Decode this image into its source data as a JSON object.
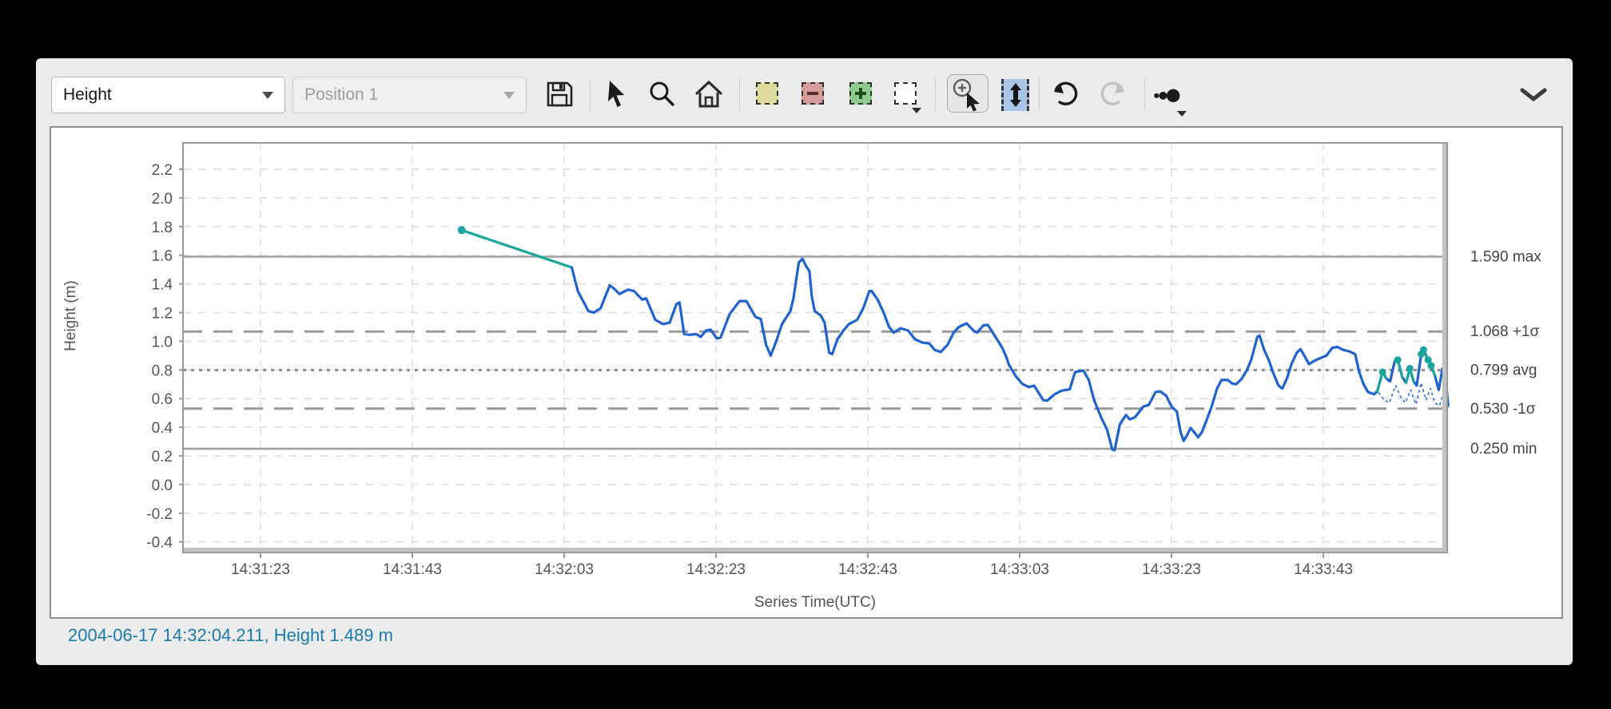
{
  "toolbar": {
    "series_select": {
      "value": "Height"
    },
    "position_select": {
      "value": "Position 1",
      "disabled": true
    },
    "icons": [
      "save-icon",
      "cursor-arrow-icon",
      "search-icon",
      "home-icon",
      "region-create-icon",
      "region-subtract-icon",
      "region-add-icon",
      "region-empty-icon",
      "zoom-select-icon",
      "fit-vertical-icon",
      "undo-icon",
      "redo-icon",
      "marker-size-icon",
      "chevron-down-icon"
    ]
  },
  "status_bar": {
    "text": "2004-06-17 14:32:04.211, Height 1.489 m"
  },
  "chart_data": {
    "type": "line",
    "title": "",
    "xlabel": "Series Time(UTC)",
    "ylabel": "Height (m)",
    "x_axis": {
      "unit": "seconds after 14:31:23 UTC",
      "range": [
        -10.2,
        156.5
      ],
      "ticks": [
        [
          0,
          "14:31:23"
        ],
        [
          20,
          "14:31:43"
        ],
        [
          40,
          "14:32:03"
        ],
        [
          60,
          "14:32:23"
        ],
        [
          80,
          "14:32:43"
        ],
        [
          100,
          "14:33:03"
        ],
        [
          120,
          "14:33:23"
        ],
        [
          140,
          "14:33:43"
        ]
      ],
      "grid": true
    },
    "y_axis": {
      "range": [
        -0.46,
        2.39
      ],
      "ticks": [
        -0.4,
        -0.2,
        0.0,
        0.2,
        0.4,
        0.6,
        0.8,
        1.0,
        1.2,
        1.4,
        1.6,
        1.8,
        2.0,
        2.2
      ],
      "grid": true
    },
    "reference_lines": [
      {
        "value": 1.59,
        "label": "1.590 max",
        "style": "solid"
      },
      {
        "value": 1.068,
        "label": "1.068 +1σ",
        "style": "dash"
      },
      {
        "value": 0.799,
        "label": "0.799 avg",
        "style": "dot"
      },
      {
        "value": 0.53,
        "label": "0.530 -1σ",
        "style": "dash"
      },
      {
        "value": 0.25,
        "label": "0.250 min",
        "style": "solid"
      }
    ],
    "series": [
      {
        "name": "gap-segment",
        "color": "#1aa69d",
        "style": "solid",
        "width": 3.2,
        "points": [
          [
            26.5,
            1.775
          ],
          [
            41.0,
            1.515
          ]
        ],
        "markers": [
          [
            26.5,
            1.775
          ]
        ],
        "marker_r": 5
      },
      {
        "name": "height",
        "color": "#1f63cf",
        "style": "solid",
        "width": 3.2,
        "points": [
          [
            41.0,
            1.515
          ],
          [
            41.8,
            1.35
          ],
          [
            43.2,
            1.21
          ],
          [
            43.9,
            1.2
          ],
          [
            44.8,
            1.23
          ],
          [
            46.0,
            1.39
          ],
          [
            46.5,
            1.37
          ],
          [
            47.3,
            1.33
          ],
          [
            48.4,
            1.36
          ],
          [
            49.2,
            1.35
          ],
          [
            50.3,
            1.29
          ],
          [
            50.8,
            1.3
          ],
          [
            52.0,
            1.15
          ],
          [
            53.0,
            1.12
          ],
          [
            53.9,
            1.13
          ],
          [
            54.8,
            1.26
          ],
          [
            55.2,
            1.27
          ],
          [
            55.8,
            1.05
          ],
          [
            56.5,
            1.045
          ],
          [
            57.4,
            1.05
          ],
          [
            58.0,
            1.03
          ],
          [
            58.7,
            1.075
          ],
          [
            59.3,
            1.08
          ],
          [
            60.1,
            1.02
          ],
          [
            60.6,
            1.025
          ],
          [
            61.8,
            1.19
          ],
          [
            63.1,
            1.28
          ],
          [
            64.0,
            1.28
          ],
          [
            65.2,
            1.17
          ],
          [
            65.9,
            1.155
          ],
          [
            66.6,
            0.975
          ],
          [
            67.2,
            0.9
          ],
          [
            68.0,
            1.01
          ],
          [
            68.7,
            1.12
          ],
          [
            69.3,
            1.17
          ],
          [
            69.8,
            1.21
          ],
          [
            70.2,
            1.3
          ],
          [
            70.9,
            1.55
          ],
          [
            71.4,
            1.575
          ],
          [
            71.9,
            1.52
          ],
          [
            72.3,
            1.49
          ],
          [
            72.6,
            1.32
          ],
          [
            73.0,
            1.21
          ],
          [
            73.8,
            1.18
          ],
          [
            74.3,
            1.13
          ],
          [
            74.9,
            0.92
          ],
          [
            75.3,
            0.91
          ],
          [
            76.0,
            1.015
          ],
          [
            76.8,
            1.075
          ],
          [
            77.5,
            1.12
          ],
          [
            78.6,
            1.15
          ],
          [
            79.4,
            1.23
          ],
          [
            80.2,
            1.35
          ],
          [
            80.5,
            1.35
          ],
          [
            81.3,
            1.29
          ],
          [
            82.0,
            1.21
          ],
          [
            82.8,
            1.1
          ],
          [
            83.4,
            1.06
          ],
          [
            84.3,
            1.09
          ],
          [
            85.3,
            1.075
          ],
          [
            86.2,
            1.015
          ],
          [
            87.2,
            0.99
          ],
          [
            88.1,
            0.985
          ],
          [
            88.8,
            0.94
          ],
          [
            89.6,
            0.925
          ],
          [
            90.5,
            0.975
          ],
          [
            91.3,
            1.06
          ],
          [
            92.0,
            1.1
          ],
          [
            93.0,
            1.125
          ],
          [
            93.9,
            1.075
          ],
          [
            94.4,
            1.06
          ],
          [
            95.2,
            1.11
          ],
          [
            95.8,
            1.115
          ],
          [
            96.7,
            1.04
          ],
          [
            97.7,
            0.955
          ],
          [
            98.2,
            0.895
          ],
          [
            98.6,
            0.835
          ],
          [
            99.5,
            0.755
          ],
          [
            100.3,
            0.705
          ],
          [
            101.2,
            0.68
          ],
          [
            101.9,
            0.69
          ],
          [
            103.1,
            0.59
          ],
          [
            103.6,
            0.585
          ],
          [
            104.6,
            0.63
          ],
          [
            105.5,
            0.655
          ],
          [
            106.6,
            0.665
          ],
          [
            107.3,
            0.785
          ],
          [
            108.4,
            0.795
          ],
          [
            109.1,
            0.73
          ],
          [
            109.8,
            0.59
          ],
          [
            110.8,
            0.46
          ],
          [
            111.5,
            0.385
          ],
          [
            112.2,
            0.245
          ],
          [
            112.5,
            0.24
          ],
          [
            113.2,
            0.42
          ],
          [
            114.0,
            0.485
          ],
          [
            114.5,
            0.455
          ],
          [
            115.2,
            0.47
          ],
          [
            116.3,
            0.545
          ],
          [
            117.0,
            0.555
          ],
          [
            117.9,
            0.645
          ],
          [
            118.5,
            0.65
          ],
          [
            119.3,
            0.62
          ],
          [
            120.0,
            0.545
          ],
          [
            120.7,
            0.51
          ],
          [
            121.2,
            0.365
          ],
          [
            121.6,
            0.305
          ],
          [
            122.1,
            0.35
          ],
          [
            122.5,
            0.395
          ],
          [
            123.0,
            0.365
          ],
          [
            123.5,
            0.33
          ],
          [
            124.0,
            0.365
          ],
          [
            124.6,
            0.445
          ],
          [
            125.3,
            0.545
          ],
          [
            126.0,
            0.67
          ],
          [
            126.6,
            0.73
          ],
          [
            127.4,
            0.73
          ],
          [
            128.0,
            0.705
          ],
          [
            128.5,
            0.7
          ],
          [
            129.2,
            0.735
          ],
          [
            129.9,
            0.795
          ],
          [
            130.5,
            0.87
          ],
          [
            131.3,
            1.03
          ],
          [
            131.6,
            1.04
          ],
          [
            132.2,
            0.94
          ],
          [
            132.8,
            0.87
          ],
          [
            133.5,
            0.765
          ],
          [
            134.1,
            0.69
          ],
          [
            134.6,
            0.67
          ],
          [
            135.2,
            0.74
          ],
          [
            135.8,
            0.84
          ],
          [
            136.5,
            0.92
          ],
          [
            137.0,
            0.945
          ],
          [
            137.6,
            0.89
          ],
          [
            138.1,
            0.84
          ],
          [
            138.7,
            0.86
          ],
          [
            139.5,
            0.88
          ],
          [
            140.4,
            0.9
          ],
          [
            141.2,
            0.955
          ],
          [
            141.9,
            0.96
          ],
          [
            142.6,
            0.94
          ],
          [
            143.4,
            0.93
          ],
          [
            144.2,
            0.91
          ],
          [
            144.7,
            0.79
          ],
          [
            145.3,
            0.7
          ],
          [
            145.9,
            0.645
          ],
          [
            146.7,
            0.63
          ],
          [
            147.1,
            0.65
          ],
          [
            147.8,
            0.785
          ],
          [
            148.3,
            0.74
          ],
          [
            148.8,
            0.72
          ],
          [
            149.4,
            0.86
          ],
          [
            149.8,
            0.87
          ],
          [
            150.4,
            0.75
          ],
          [
            150.9,
            0.71
          ],
          [
            151.4,
            0.81
          ],
          [
            151.9,
            0.72
          ],
          [
            152.3,
            0.69
          ],
          [
            152.9,
            0.91
          ],
          [
            153.2,
            0.94
          ],
          [
            153.8,
            0.87
          ],
          [
            154.2,
            0.83
          ],
          [
            154.7,
            0.76
          ],
          [
            155.2,
            0.66
          ],
          [
            155.7,
            0.81
          ],
          [
            156.0,
            0.815
          ],
          [
            156.45,
            0.55
          ]
        ]
      },
      {
        "name": "recent-overlay-1",
        "color": "#1aa69d",
        "style": "solid",
        "width": 3.2,
        "points": [
          [
            147.1,
            0.65
          ],
          [
            147.8,
            0.785
          ],
          [
            148.3,
            0.74
          ]
        ],
        "markers": [
          [
            147.8,
            0.785
          ]
        ],
        "marker_r": 4.5
      },
      {
        "name": "recent-overlay-2",
        "color": "#1aa69d",
        "style": "solid",
        "width": 3.2,
        "points": [
          [
            149.4,
            0.86
          ],
          [
            149.8,
            0.87
          ],
          [
            150.4,
            0.75
          ]
        ],
        "markers": [
          [
            149.8,
            0.87
          ]
        ],
        "marker_r": 4.5
      },
      {
        "name": "recent-overlay-3",
        "color": "#1aa69d",
        "style": "solid",
        "width": 3.2,
        "points": [
          [
            150.9,
            0.71
          ],
          [
            151.4,
            0.81
          ],
          [
            151.9,
            0.72
          ]
        ],
        "markers": [
          [
            151.4,
            0.81
          ]
        ],
        "marker_r": 4.5
      },
      {
        "name": "recent-overlay-4",
        "color": "#1aa69d",
        "style": "solid",
        "width": 3.2,
        "points": [
          [
            152.9,
            0.91
          ],
          [
            153.2,
            0.94
          ],
          [
            153.8,
            0.87
          ],
          [
            154.2,
            0.83
          ],
          [
            154.7,
            0.76
          ]
        ],
        "markers": [
          [
            152.9,
            0.91
          ],
          [
            153.2,
            0.94
          ],
          [
            153.8,
            0.87
          ],
          [
            154.2,
            0.83
          ]
        ],
        "marker_r": 4.5
      },
      {
        "name": "lower-bound",
        "color": "#3a78d6",
        "style": "dotted",
        "width": 1.8,
        "points": [
          [
            147.3,
            0.64
          ],
          [
            148.0,
            0.59
          ],
          [
            148.7,
            0.57
          ],
          [
            149.5,
            0.69
          ],
          [
            150.2,
            0.61
          ],
          [
            150.8,
            0.57
          ],
          [
            151.5,
            0.66
          ],
          [
            152.2,
            0.56
          ],
          [
            152.9,
            0.71
          ],
          [
            153.5,
            0.59
          ],
          [
            154.1,
            0.67
          ],
          [
            154.7,
            0.57
          ],
          [
            155.3,
            0.55
          ],
          [
            155.9,
            0.65
          ],
          [
            156.4,
            0.57
          ]
        ]
      }
    ],
    "legend": "none",
    "colors": {
      "line": "#1f63cf",
      "recent": "#1aa69d",
      "reference": "#9a9a9a",
      "grid": "#e2e2e2",
      "status_text": "#1b7cab"
    }
  }
}
